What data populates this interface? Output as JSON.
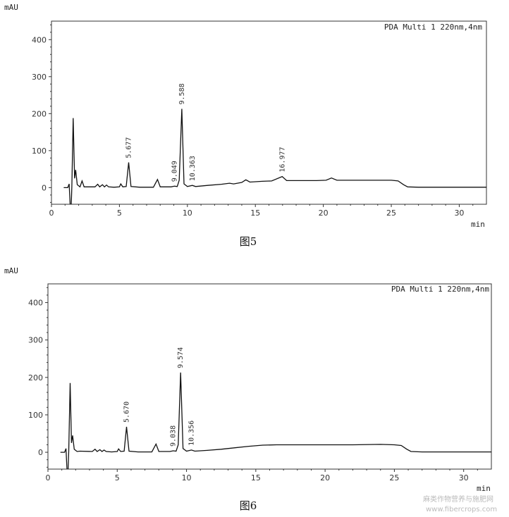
{
  "chart_data": [
    {
      "type": "line",
      "caption": "图5",
      "legend": "PDA Multi 1 220nm,4nm",
      "ylabel": "mAU",
      "xlabel": "min",
      "xlim": [
        0,
        32
      ],
      "ylim": [
        -45,
        450
      ],
      "xticks": [
        0,
        5,
        10,
        15,
        20,
        25,
        30
      ],
      "yticks": [
        0,
        100,
        200,
        300,
        400
      ],
      "peaks": [
        {
          "label": "5.677",
          "x": 5.677,
          "y": 68
        },
        {
          "label": "9.049",
          "x": 9.049,
          "y": 4
        },
        {
          "label": "9.588",
          "x": 9.588,
          "y": 213
        },
        {
          "label": "10.363",
          "x": 10.363,
          "y": 6
        },
        {
          "label": "16.977",
          "x": 16.977,
          "y": 30
        }
      ],
      "series": [
        {
          "values": [
            [
              0.9,
              0
            ],
            [
              1.2,
              0
            ],
            [
              1.3,
              10
            ],
            [
              1.38,
              -50
            ],
            [
              1.45,
              -50
            ],
            [
              1.5,
              2
            ],
            [
              1.6,
              188
            ],
            [
              1.7,
              25
            ],
            [
              1.78,
              48
            ],
            [
              1.9,
              8
            ],
            [
              2.1,
              2
            ],
            [
              2.25,
              18
            ],
            [
              2.4,
              2
            ],
            [
              3.2,
              2
            ],
            [
              3.4,
              9
            ],
            [
              3.55,
              2
            ],
            [
              3.75,
              8
            ],
            [
              3.9,
              2
            ],
            [
              4.05,
              7
            ],
            [
              4.2,
              2
            ],
            [
              4.6,
              1
            ],
            [
              5.0,
              2
            ],
            [
              5.1,
              10
            ],
            [
              5.25,
              2
            ],
            [
              5.5,
              3
            ],
            [
              5.677,
              68
            ],
            [
              5.85,
              3
            ],
            [
              6.5,
              1
            ],
            [
              7.5,
              1
            ],
            [
              7.8,
              22
            ],
            [
              8.0,
              2
            ],
            [
              8.8,
              2
            ],
            [
              9.049,
              4
            ],
            [
              9.25,
              3
            ],
            [
              9.4,
              20
            ],
            [
              9.588,
              213
            ],
            [
              9.75,
              10
            ],
            [
              10.0,
              3
            ],
            [
              10.363,
              6
            ],
            [
              10.6,
              3
            ],
            [
              11.5,
              6
            ],
            [
              12.5,
              9
            ],
            [
              13.1,
              12
            ],
            [
              13.4,
              10
            ],
            [
              14.0,
              14
            ],
            [
              14.3,
              21
            ],
            [
              14.6,
              15
            ],
            [
              15.5,
              17
            ],
            [
              16.2,
              18
            ],
            [
              16.977,
              30
            ],
            [
              17.3,
              19
            ],
            [
              18.5,
              19
            ],
            [
              19.5,
              19
            ],
            [
              20.2,
              20
            ],
            [
              20.6,
              26
            ],
            [
              21.0,
              20
            ],
            [
              22.5,
              20
            ],
            [
              24.0,
              20
            ],
            [
              25.0,
              20
            ],
            [
              25.5,
              18
            ],
            [
              25.9,
              8
            ],
            [
              26.2,
              2
            ],
            [
              27.0,
              1
            ],
            [
              29.0,
              1
            ],
            [
              31.0,
              1
            ],
            [
              32.0,
              1
            ]
          ]
        }
      ]
    },
    {
      "type": "line",
      "caption": "图6",
      "legend": "PDA Multi 1 220nm,4nm",
      "ylabel": "mAU",
      "xlabel": "min",
      "xlim": [
        0,
        32
      ],
      "ylim": [
        -45,
        450
      ],
      "xticks": [
        0,
        5,
        10,
        15,
        20,
        25,
        30
      ],
      "yticks": [
        0,
        100,
        200,
        300,
        400
      ],
      "peaks": [
        {
          "label": "5.670",
          "x": 5.67,
          "y": 68
        },
        {
          "label": "9.038",
          "x": 9.038,
          "y": 4
        },
        {
          "label": "9.574",
          "x": 9.574,
          "y": 213
        },
        {
          "label": "10.356",
          "x": 10.356,
          "y": 6
        }
      ],
      "series": [
        {
          "values": [
            [
              0.9,
              0
            ],
            [
              1.2,
              0
            ],
            [
              1.3,
              10
            ],
            [
              1.38,
              -50
            ],
            [
              1.45,
              -50
            ],
            [
              1.5,
              2
            ],
            [
              1.6,
              185
            ],
            [
              1.7,
              25
            ],
            [
              1.78,
              45
            ],
            [
              1.9,
              8
            ],
            [
              2.1,
              2
            ],
            [
              2.3,
              3
            ],
            [
              3.2,
              2
            ],
            [
              3.4,
              8
            ],
            [
              3.55,
              2
            ],
            [
              3.75,
              7
            ],
            [
              3.9,
              2
            ],
            [
              4.05,
              6
            ],
            [
              4.2,
              2
            ],
            [
              4.6,
              1
            ],
            [
              5.0,
              2
            ],
            [
              5.1,
              9
            ],
            [
              5.25,
              2
            ],
            [
              5.5,
              3
            ],
            [
              5.67,
              68
            ],
            [
              5.85,
              3
            ],
            [
              6.5,
              1
            ],
            [
              7.5,
              1
            ],
            [
              7.8,
              22
            ],
            [
              8.0,
              2
            ],
            [
              8.8,
              2
            ],
            [
              9.038,
              4
            ],
            [
              9.25,
              3
            ],
            [
              9.4,
              20
            ],
            [
              9.574,
              213
            ],
            [
              9.75,
              10
            ],
            [
              10.0,
              3
            ],
            [
              10.356,
              6
            ],
            [
              10.6,
              3
            ],
            [
              11.5,
              5
            ],
            [
              12.5,
              8
            ],
            [
              13.5,
              12
            ],
            [
              14.5,
              16
            ],
            [
              15.5,
              19
            ],
            [
              16.5,
              20
            ],
            [
              18.0,
              20
            ],
            [
              20.0,
              20
            ],
            [
              22.0,
              20
            ],
            [
              24.0,
              21
            ],
            [
              25.0,
              20
            ],
            [
              25.5,
              18
            ],
            [
              25.9,
              8
            ],
            [
              26.2,
              2
            ],
            [
              27.0,
              1
            ],
            [
              29.0,
              1
            ],
            [
              31.0,
              1
            ],
            [
              32.0,
              1
            ]
          ]
        }
      ]
    }
  ],
  "watermark": {
    "line1": "麻类作物营养与施肥网",
    "line2": "www.fibercrops.com"
  }
}
